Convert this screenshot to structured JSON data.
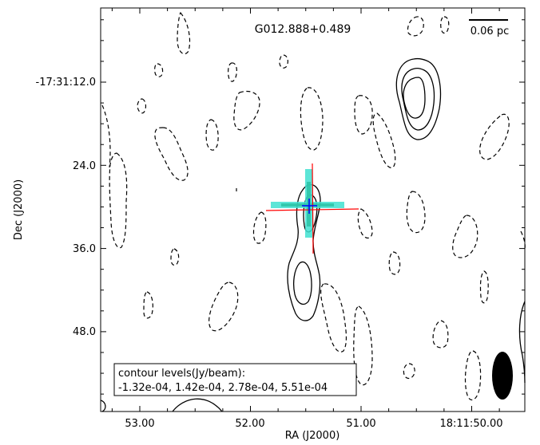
{
  "chart_data": {
    "type": "contour",
    "title": "G012.888+0.489",
    "xlabel": "RA (J2000)",
    "ylabel": "Dec (J2000)",
    "x_tick_labels": [
      "53.00",
      "52.00",
      "51.00",
      "18:11:50.00"
    ],
    "y_tick_labels": [
      "-17:31:12.0",
      "24.0",
      "36.0",
      "48.0"
    ],
    "scalebar_label": "0.06 pc",
    "legend": {
      "title": "contour levels(Jy/beam):",
      "levels_text": "-1.32e-04, 1.42e-04, 2.78e-04, 5.51e-04"
    },
    "contour_levels_jy_per_beam": [
      -0.000132,
      0.000142,
      0.000278,
      0.000551
    ],
    "negative_contour_style": "dashed",
    "positive_contour_style": "solid",
    "markers": [
      {
        "type": "cross",
        "color": "#ff0000"
      },
      {
        "type": "cross",
        "color": "#40e0d0"
      },
      {
        "type": "cross",
        "color": "#0000ff"
      }
    ],
    "beam_color": "#000000",
    "grid": false
  }
}
